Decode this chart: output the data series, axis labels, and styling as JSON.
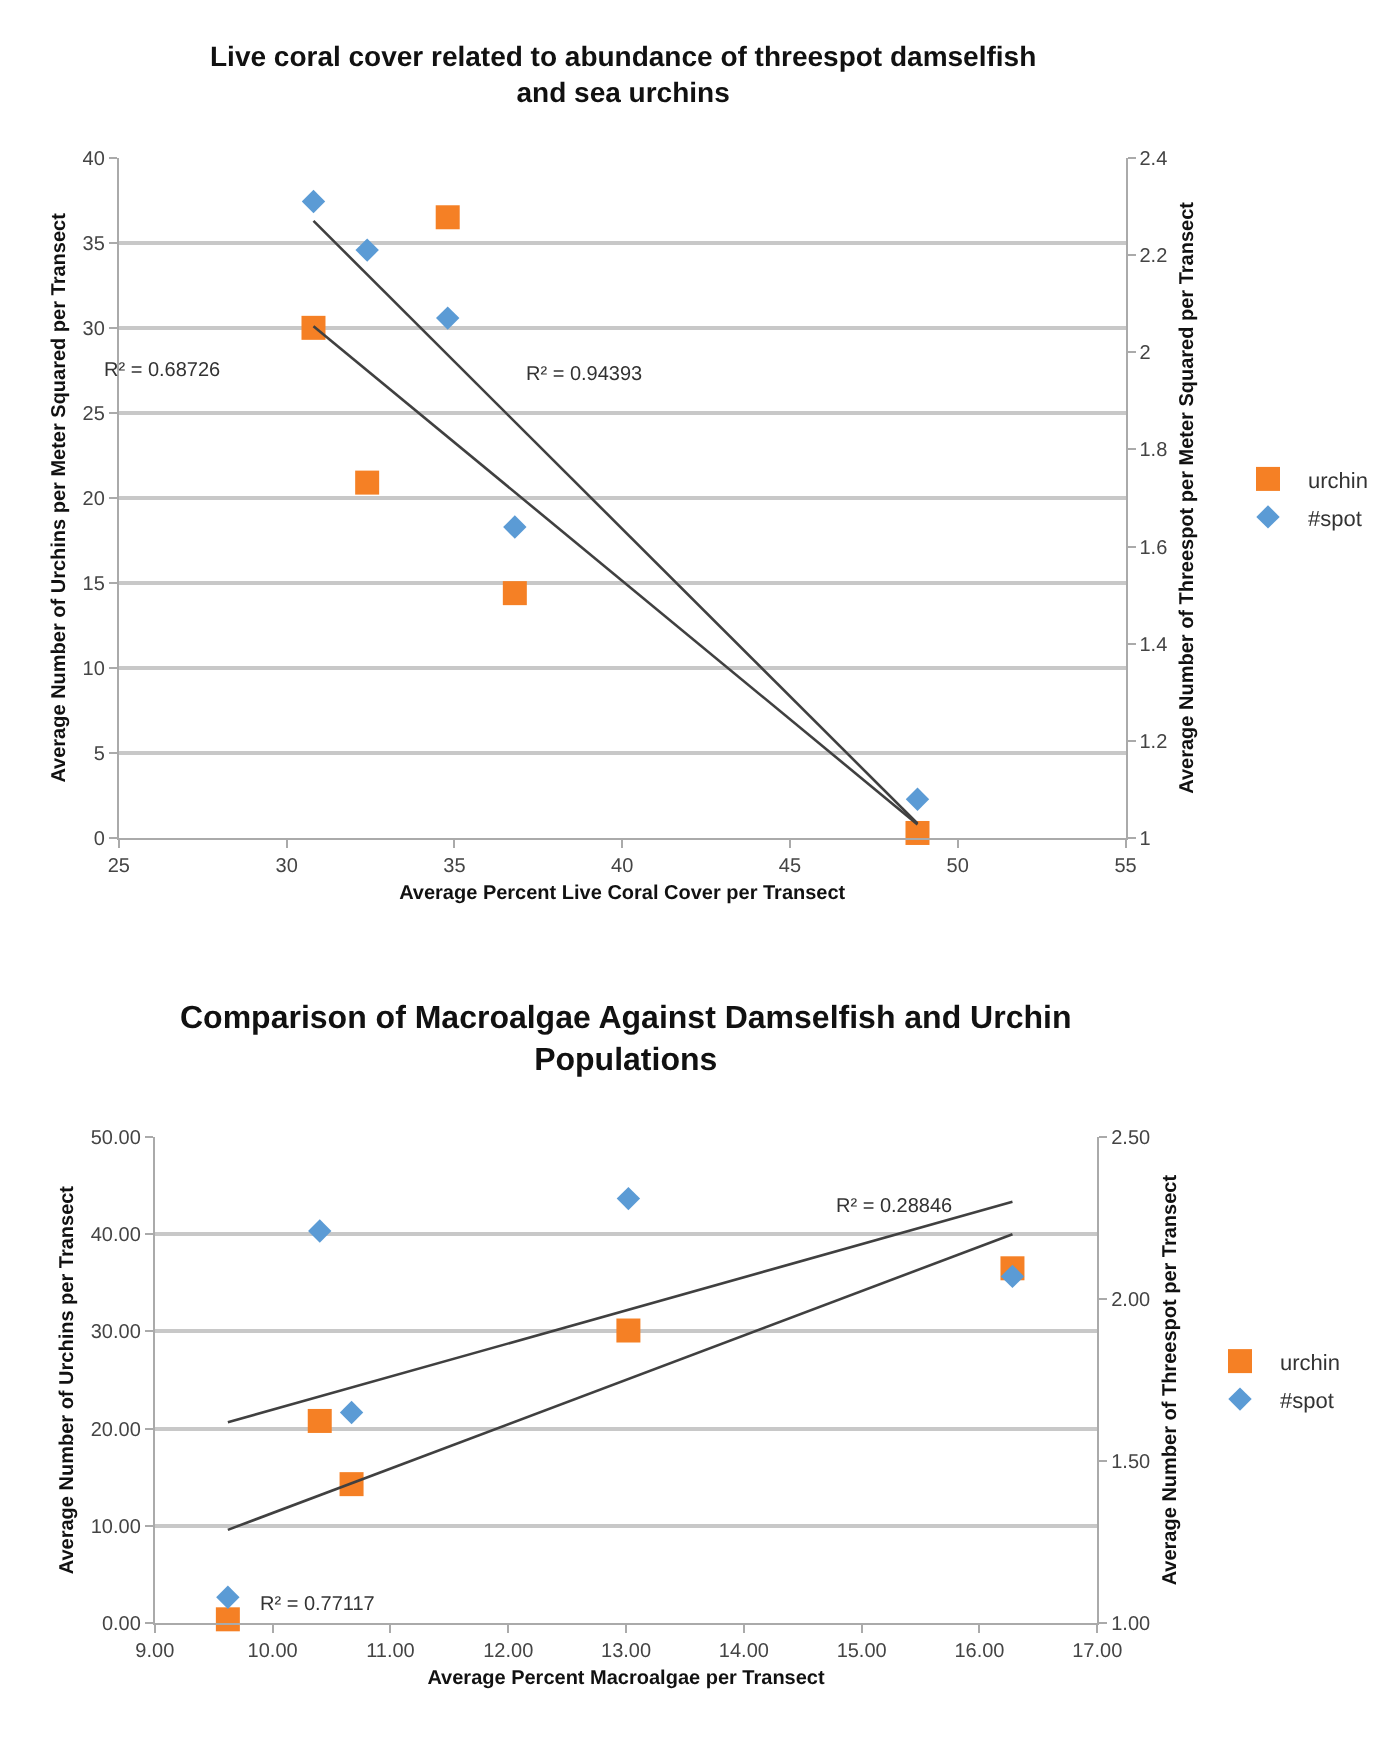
{
  "chart_data": [
    {
      "type": "scatter",
      "title": "Live coral cover related to abundance of threespot damselfish and sea urchins",
      "xlabel": "Average Percent Live Coral Cover per Transect",
      "ylabel": "Average Number of Urchins per Meter Squared per Transect",
      "y2label": "Average Number of Threespot per Meter Squared per Transect",
      "xlim": [
        25,
        55
      ],
      "xticks": [
        25,
        30,
        35,
        40,
        45,
        50,
        55
      ],
      "ylim": [
        0,
        40
      ],
      "yticks": [
        0,
        5,
        10,
        15,
        20,
        25,
        30,
        35,
        40
      ],
      "y2lim": [
        1,
        2.4
      ],
      "y2ticks": [
        1,
        1.2,
        1.4,
        1.6,
        1.8,
        2,
        2.2,
        2.4
      ],
      "grid": "y",
      "legend": "right",
      "series": [
        {
          "name": "urchin",
          "color": "#f58025",
          "marker": "square",
          "x": [
            30.8,
            32.4,
            34.8,
            36.8,
            48.8
          ],
          "values": [
            30,
            20.9,
            36.5,
            14.4,
            0.3
          ]
        },
        {
          "name": "#spot",
          "color": "#5b9bd5",
          "marker": "diamond",
          "axis": "y2",
          "x": [
            30.8,
            32.4,
            34.8,
            36.8,
            48.8
          ],
          "values": [
            2.31,
            2.21,
            2.07,
            1.64,
            1.08
          ]
        },
        {
          "type": "line",
          "color": "#404040",
          "marker": "none",
          "x": [
            30.8,
            48.8
          ],
          "values": [
            30.1,
            0.8
          ]
        },
        {
          "type": "line",
          "color": "#404040",
          "marker": "none",
          "axis": "y2",
          "x": [
            30.8,
            48.8
          ],
          "values": [
            2.27,
            1.03
          ]
        }
      ],
      "annotations": [
        "R² = 0.68726",
        "R² = 0.94393"
      ]
    },
    {
      "type": "scatter",
      "title": "Comparison of Macroalgae Against Damselfish and Urchin Populations",
      "xlabel": "Average Percent Macroalgae per Transect",
      "ylabel": "Average Number of Urchins per Transect",
      "y2label": "Average Number of Threespot per Transect",
      "xlim": [
        9,
        17
      ],
      "xticks": [
        {
          "value": 9,
          "label": "9.00"
        },
        {
          "value": 10,
          "label": "10.00"
        },
        {
          "value": 11,
          "label": "11.00"
        },
        {
          "value": 12,
          "label": "12.00"
        },
        {
          "value": 13,
          "label": "13.00"
        },
        {
          "value": 14,
          "label": "14.00"
        },
        {
          "value": 15,
          "label": "15.00"
        },
        {
          "value": 16,
          "label": "16.00"
        },
        {
          "value": 17,
          "label": "17.00"
        }
      ],
      "ylim": [
        0,
        50
      ],
      "yticks": [
        {
          "value": 0,
          "label": "0.00"
        },
        {
          "value": 10,
          "label": "10.00"
        },
        {
          "value": 20,
          "label": "20.00"
        },
        {
          "value": 30,
          "label": "30.00"
        },
        {
          "value": 40,
          "label": "40.00"
        },
        {
          "value": 50,
          "label": "50.00"
        }
      ],
      "y2lim": [
        1,
        2.5
      ],
      "y2ticks": [
        {
          "value": 1,
          "label": "1.00"
        },
        {
          "value": 1.5,
          "label": "1.50"
        },
        {
          "value": 2,
          "label": "2.00"
        },
        {
          "value": 2.5,
          "label": "2.50"
        }
      ],
      "grid": "y",
      "legend": "right",
      "series": [
        {
          "name": "urchin",
          "color": "#f58025",
          "marker": "square",
          "x": [
            9.62,
            10.4,
            10.67,
            13.02,
            16.28
          ],
          "values": [
            0.4,
            20.8,
            14.3,
            30.1,
            36.5
          ]
        },
        {
          "name": "#spot",
          "color": "#5b9bd5",
          "marker": "diamond",
          "axis": "y2",
          "x": [
            9.62,
            10.4,
            10.67,
            13.02,
            16.28
          ],
          "values": [
            1.08,
            2.21,
            1.65,
            2.31,
            2.07
          ]
        },
        {
          "type": "line",
          "color": "#404040",
          "marker": "none",
          "x": [
            9.62,
            16.28
          ],
          "values": [
            9.6,
            40.0
          ]
        },
        {
          "type": "line",
          "color": "#404040",
          "marker": "none",
          "axis": "y2",
          "x": [
            9.62,
            16.28
          ],
          "values": [
            1.62,
            2.3
          ]
        }
      ],
      "annotations": [
        "R² = 0.77117",
        "R² = 0.28846"
      ]
    }
  ]
}
